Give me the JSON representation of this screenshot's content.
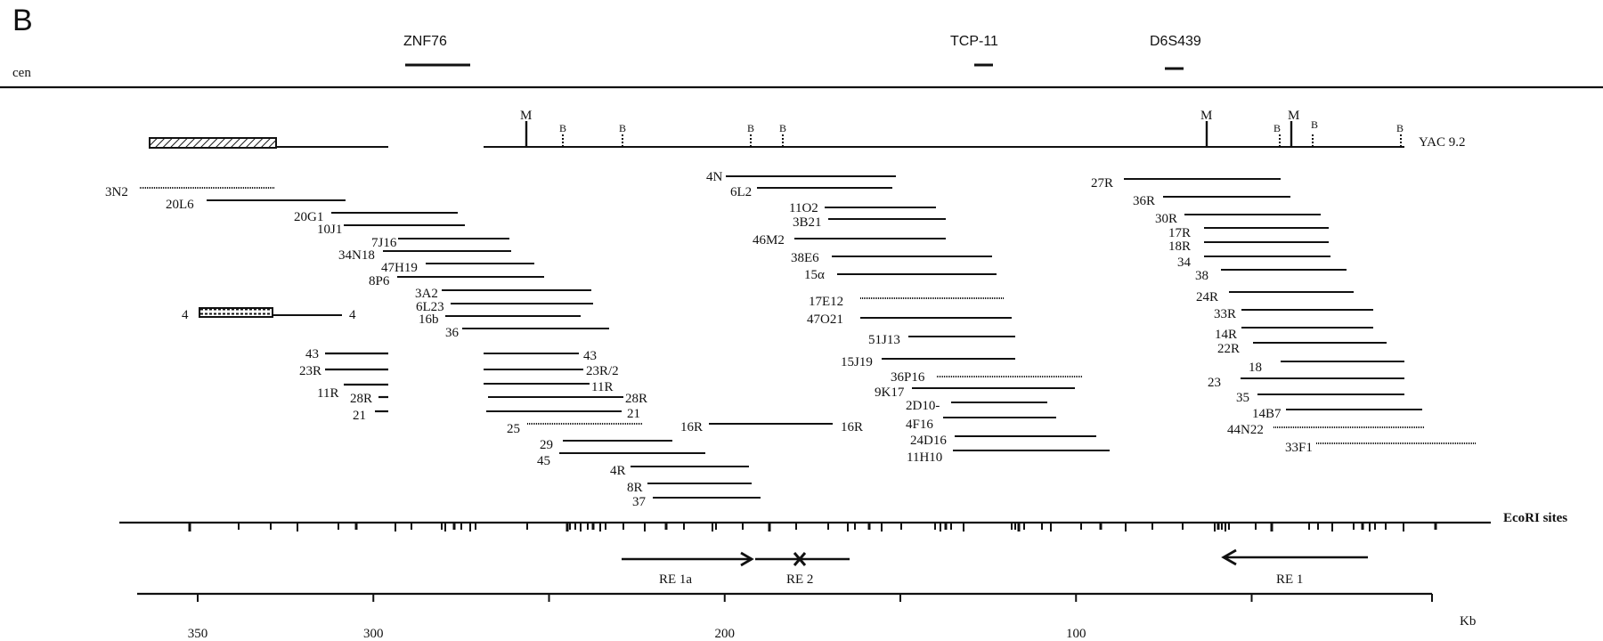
{
  "panel_label": "B",
  "centromere_label": "cen",
  "markers": [
    {
      "name": "ZNF76"
    },
    {
      "name": "TCP-11"
    },
    {
      "name": "D6S439"
    }
  ],
  "yac_label": "YAC 9.2",
  "yac_sites": [
    {
      "label": "M",
      "kb": 250
    },
    {
      "label": "B",
      "kb": 240
    },
    {
      "label": "B",
      "kb": 223
    },
    {
      "label": "B",
      "kb": 186
    },
    {
      "label": "B",
      "kb": 177
    },
    {
      "label": "M",
      "kb": 57
    },
    {
      "label": "B",
      "kb": 36
    },
    {
      "label": "M",
      "kb": 32
    },
    {
      "label": "B",
      "kb": 26
    },
    {
      "label": "B",
      "kb": 2
    }
  ],
  "clones": [
    {
      "id": "3N2",
      "left": null,
      "right": null
    },
    {
      "id": "20L6",
      "left": null,
      "right": null
    },
    {
      "id": "20G1",
      "left": null,
      "right": null
    },
    {
      "id": "10J1",
      "left": null,
      "right": null
    },
    {
      "id": "7J16",
      "left": null,
      "right": null
    },
    {
      "id": "34N18",
      "left": null,
      "right": null
    },
    {
      "id": "47H19",
      "left": null,
      "right": null
    },
    {
      "id": "8P6",
      "left": null,
      "right": null
    },
    {
      "id": "3A2",
      "left": null,
      "right": null
    },
    {
      "id": "6L23",
      "left": null,
      "right": null
    },
    {
      "id": "16b",
      "left": null,
      "right": null
    },
    {
      "id": "36",
      "left": null,
      "right": null
    },
    {
      "id": "4",
      "left": "4",
      "right": "4"
    },
    {
      "id": "43",
      "left": null,
      "right": null
    },
    {
      "id": "23R",
      "left": null,
      "right": null
    },
    {
      "id": "11R",
      "left": null,
      "right": null
    },
    {
      "id": "28R",
      "left": null,
      "right": null
    },
    {
      "id": "21",
      "left": null,
      "right": null
    },
    {
      "id": "43b",
      "left": null,
      "right": "43"
    },
    {
      "id": "23R/2",
      "left": null,
      "right": "23R/2"
    },
    {
      "id": "11Rb",
      "left": null,
      "right": "11R"
    },
    {
      "id": "28Rb",
      "left": null,
      "right": "28R"
    },
    {
      "id": "21b",
      "left": null,
      "right": "21"
    },
    {
      "id": "25",
      "left": "25",
      "right": null
    },
    {
      "id": "16R",
      "left": "16R",
      "right": "16R"
    },
    {
      "id": "29",
      "left": "29",
      "right": null
    },
    {
      "id": "45",
      "left": "45",
      "right": null
    },
    {
      "id": "4R",
      "left": "4R",
      "right": null
    },
    {
      "id": "8R",
      "left": "8R",
      "right": null
    },
    {
      "id": "37",
      "left": "37",
      "right": null
    },
    {
      "id": "4N",
      "left": "4N",
      "right": null
    },
    {
      "id": "6L2",
      "left": "6L2",
      "right": null
    },
    {
      "id": "11O2",
      "left": "11O2",
      "right": null
    },
    {
      "id": "3B21",
      "left": "3B21",
      "right": null
    },
    {
      "id": "46M2",
      "left": "46M2",
      "right": null
    },
    {
      "id": "38E6",
      "left": "38E6",
      "right": null
    },
    {
      "id": "15α",
      "left": "15α",
      "right": null
    },
    {
      "id": "17E12",
      "left": "17E12",
      "right": null
    },
    {
      "id": "47O21",
      "left": "47O21",
      "right": null
    },
    {
      "id": "51J13",
      "left": "51J13",
      "right": null
    },
    {
      "id": "15J19",
      "left": "15J19",
      "right": null
    },
    {
      "id": "36P16",
      "left": "36P16",
      "right": null
    },
    {
      "id": "9K17",
      "left": "9K17",
      "right": null
    },
    {
      "id": "2D10-",
      "left": "2D10-",
      "right": null
    },
    {
      "id": "4F16",
      "left": "4F16",
      "right": null
    },
    {
      "id": "24D16",
      "left": "24D16",
      "right": null
    },
    {
      "id": "11H10",
      "left": "11H10",
      "right": null
    },
    {
      "id": "27R",
      "left": "27R",
      "right": null
    },
    {
      "id": "36R",
      "left": "36R",
      "right": null
    },
    {
      "id": "30R",
      "left": "30R",
      "right": null
    },
    {
      "id": "17R",
      "left": "17R",
      "right": null
    },
    {
      "id": "18R",
      "left": "18R",
      "right": null
    },
    {
      "id": "34",
      "left": "34",
      "right": null
    },
    {
      "id": "38",
      "left": "38",
      "right": null
    },
    {
      "id": "24R",
      "left": "24R",
      "right": null
    },
    {
      "id": "33R",
      "left": "33R",
      "right": null
    },
    {
      "id": "14R",
      "left": "14R",
      "right": null
    },
    {
      "id": "22R",
      "left": "22R",
      "right": null
    },
    {
      "id": "18",
      "left": "18",
      "right": null
    },
    {
      "id": "23",
      "left": "23",
      "right": null
    },
    {
      "id": "35",
      "left": "35",
      "right": null
    },
    {
      "id": "14B7",
      "left": "14B7",
      "right": null
    },
    {
      "id": "44N22",
      "left": "44N22",
      "right": null
    },
    {
      "id": "33F1",
      "left": "33F1",
      "right": null
    }
  ],
  "ecori_label": "EcoRI sites",
  "regions": [
    {
      "label": "RE 1a"
    },
    {
      "label": "RE 2"
    },
    {
      "label": "RE 1"
    }
  ],
  "scale": {
    "unit": "Kb",
    "ticks": [
      350,
      300,
      250,
      200,
      150,
      100,
      50
    ],
    "tick_labels": [
      "350",
      "300",
      "",
      "200",
      "",
      "100",
      ""
    ]
  }
}
